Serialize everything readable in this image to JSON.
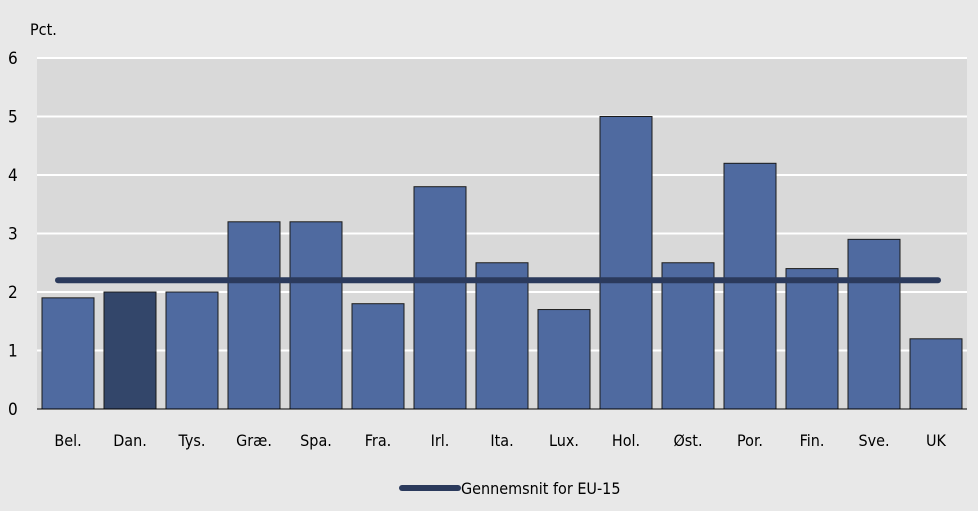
{
  "chart_data": {
    "type": "bar",
    "unit_label": "Pct.",
    "categories": [
      "Bel.",
      "Dan.",
      "Tys.",
      "Græ.",
      "Spa.",
      "Fra.",
      "Irl.",
      "Ita.",
      "Lux.",
      "Hol.",
      "Øst.",
      "Por.",
      "Fin.",
      "Sve.",
      "UK"
    ],
    "values": [
      1.9,
      2.0,
      2.0,
      3.2,
      3.2,
      1.8,
      3.8,
      2.5,
      1.7,
      5.0,
      2.5,
      4.2,
      2.4,
      2.9,
      1.2
    ],
    "highlight_category": "Dan.",
    "ylim": [
      0,
      6
    ],
    "yticks": [
      0,
      1,
      2,
      3,
      4,
      5,
      6
    ],
    "reference_line": {
      "name": "Gennemsnit for EU-15",
      "value": 2.2
    },
    "legend": {
      "placement": "bottom-center",
      "entries": [
        "Gennemsnit for EU-15"
      ]
    },
    "grid": true,
    "colors": {
      "background": "#e8e8e8",
      "plot_background": "#d9d9d9",
      "bar": "#4f6aa0",
      "bar_highlight": "#33466a",
      "line": "#2b3a5c",
      "gridline": "#ffffff"
    }
  }
}
